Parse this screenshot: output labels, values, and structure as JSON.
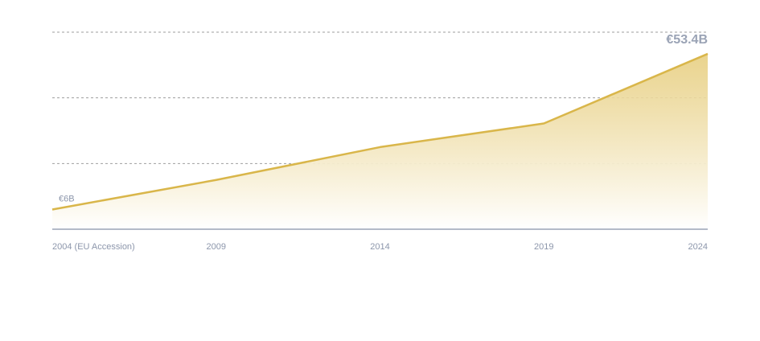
{
  "chart_data": {
    "type": "area",
    "x": [
      2004,
      2009,
      2014,
      2019,
      2024
    ],
    "x_tick_labels": [
      "2004 (EU Accession)",
      "2009",
      "2014",
      "2019",
      "2024"
    ],
    "values": [
      6,
      15,
      25,
      32.2,
      53.4
    ],
    "ylim": [
      0,
      60
    ],
    "y_gridlines": [
      20,
      40,
      60
    ],
    "grid": true,
    "start_label": "€6B",
    "end_label": "€53.4B",
    "colors": {
      "line": "#d9b64a",
      "fill_top": "#e6cc7a",
      "fill_bottom": "#ffffff",
      "grid": "#9e9e9e",
      "axis": "#9aa3b5",
      "tick_text": "#8c96ab",
      "end_label_text": "#9aa3b5"
    }
  }
}
